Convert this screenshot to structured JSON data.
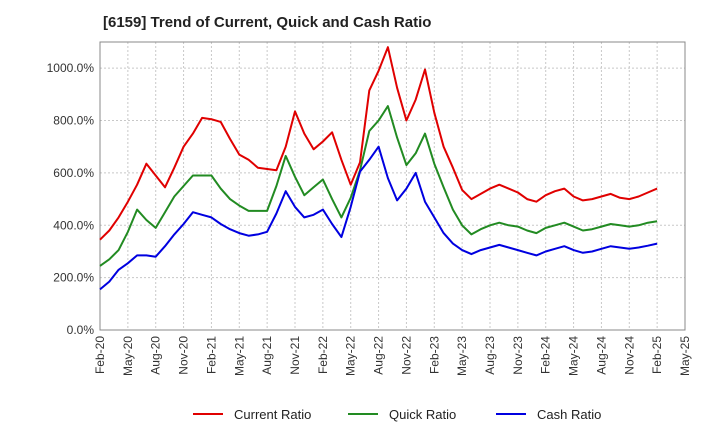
{
  "chart_data": {
    "type": "line",
    "title": "[6159]  Trend of Current, Quick and Cash Ratio",
    "xlabel": "",
    "ylabel": "",
    "ylim": [
      0,
      1100
    ],
    "yticks": [
      0,
      200,
      400,
      600,
      800,
      1000
    ],
    "ytick_labels": [
      "0.0%",
      "200.0%",
      "400.0%",
      "600.0%",
      "800.0%",
      "1000.0%"
    ],
    "grid": true,
    "legend_position": "bottom",
    "x_tick_labels": [
      "Feb-20",
      "May-20",
      "Aug-20",
      "Nov-20",
      "Feb-21",
      "May-21",
      "Aug-21",
      "Nov-21",
      "Feb-22",
      "May-22",
      "Aug-22",
      "Nov-22",
      "Feb-23",
      "May-23",
      "Aug-23",
      "Nov-23",
      "Feb-24",
      "May-24",
      "Aug-24",
      "Nov-24",
      "Feb-25",
      "May-25"
    ],
    "x_tick_positions": [
      0,
      3,
      6,
      9,
      12,
      15,
      18,
      21,
      24,
      27,
      30,
      33,
      36,
      39,
      42,
      45,
      48,
      51,
      54,
      57,
      60,
      63
    ],
    "x_range": [
      0,
      63
    ],
    "x": [
      0,
      1,
      2,
      3,
      4,
      5,
      6,
      7,
      8,
      9,
      10,
      11,
      12,
      13,
      14,
      15,
      16,
      17,
      18,
      19,
      20,
      21,
      22,
      23,
      24,
      25,
      26,
      27,
      28,
      29,
      30,
      31,
      32,
      33,
      34,
      35,
      36,
      37,
      38,
      39,
      40,
      41,
      42,
      43,
      44,
      45,
      46,
      47,
      48,
      49,
      50,
      51,
      52,
      53,
      54,
      55,
      56,
      57,
      58,
      59,
      60
    ],
    "series": [
      {
        "name": "Current Ratio",
        "color": "#e00000",
        "values": [
          345,
          380,
          430,
          490,
          555,
          635,
          590,
          545,
          620,
          700,
          750,
          810,
          805,
          795,
          730,
          670,
          650,
          620,
          615,
          610,
          700,
          835,
          750,
          690,
          720,
          755,
          650,
          555,
          640,
          915,
          990,
          1080,
          925,
          800,
          880,
          995,
          830,
          700,
          620,
          535,
          500,
          520,
          540,
          555,
          540,
          525,
          500,
          490,
          515,
          530,
          540,
          510,
          495,
          500,
          510,
          520,
          505,
          500,
          510,
          525,
          540
        ]
      },
      {
        "name": "Quick Ratio",
        "color": "#228b22",
        "values": [
          245,
          270,
          305,
          375,
          460,
          420,
          390,
          450,
          510,
          550,
          590,
          590,
          590,
          540,
          500,
          475,
          455,
          455,
          455,
          550,
          665,
          585,
          515,
          545,
          575,
          500,
          430,
          505,
          610,
          760,
          800,
          855,
          735,
          630,
          675,
          750,
          635,
          545,
          460,
          400,
          365,
          385,
          400,
          410,
          400,
          395,
          380,
          370,
          390,
          400,
          410,
          395,
          380,
          385,
          395,
          405,
          400,
          395,
          400,
          410,
          415
        ]
      },
      {
        "name": "Cash Ratio",
        "color": "#0000e0",
        "values": [
          155,
          185,
          230,
          255,
          285,
          285,
          280,
          320,
          365,
          405,
          450,
          440,
          430,
          405,
          385,
          370,
          360,
          365,
          375,
          445,
          530,
          470,
          430,
          440,
          460,
          405,
          355,
          470,
          605,
          650,
          700,
          580,
          495,
          540,
          600,
          490,
          430,
          370,
          330,
          305,
          290,
          305,
          315,
          325,
          315,
          305,
          295,
          285,
          300,
          310,
          320,
          305,
          295,
          300,
          310,
          320,
          315,
          310,
          315,
          322,
          330
        ]
      }
    ]
  }
}
